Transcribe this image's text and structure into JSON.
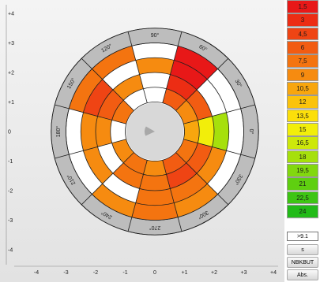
{
  "chart_data": {
    "type": "polar_heatmap",
    "angle_labels": [
      "0°",
      "30°",
      "60°",
      "90°",
      "120°",
      "150°",
      "180°",
      "210°",
      "240°",
      "270°",
      "300°",
      "330°"
    ],
    "x_ticks": [
      "-4",
      "-3",
      "-2",
      "-1",
      "0",
      "+1",
      "+2",
      "+3",
      "+4"
    ],
    "y_ticks": [
      "+4",
      "+3",
      "+2",
      "+1",
      "0",
      "-1",
      "-2",
      "-3",
      "-4"
    ],
    "xlim": [
      -4,
      4
    ],
    "ylim": [
      -4,
      4
    ],
    "sector_width_deg": 30,
    "ring_bounds": [
      0,
      1,
      1.5,
      2,
      2.5,
      3,
      3.5
    ],
    "ring_labels_scale": [
      "1,5",
      "3",
      "4,5",
      "6",
      "7,5",
      "9",
      "10,5",
      "12",
      "13,5",
      "15",
      "16,5",
      "18",
      "19,5",
      "21",
      "22,5",
      "24"
    ],
    "cells": [
      {
        "sector": 0,
        "ring": 1,
        "level": 7
      },
      {
        "sector": 0,
        "ring": 2,
        "level": 10
      },
      {
        "sector": 0,
        "ring": 3,
        "level": 12
      },
      {
        "sector": 1,
        "ring": 1,
        "level": 6
      },
      {
        "sector": 1,
        "ring": 2,
        "level": 4
      },
      {
        "sector": 2,
        "ring": 1,
        "level": 4
      },
      {
        "sector": 2,
        "ring": 2,
        "level": 2
      },
      {
        "sector": 2,
        "ring": 3,
        "level": 1
      },
      {
        "sector": 2,
        "ring": 4,
        "level": 1
      },
      {
        "sector": 3,
        "ring": 3,
        "level": 6
      },
      {
        "sector": 4,
        "ring": 2,
        "level": 6
      },
      {
        "sector": 4,
        "ring": 4,
        "level": 5
      },
      {
        "sector": 5,
        "ring": 1,
        "level": 5
      },
      {
        "sector": 5,
        "ring": 2,
        "level": 4
      },
      {
        "sector": 5,
        "ring": 3,
        "level": 3
      },
      {
        "sector": 5,
        "ring": 4,
        "level": 5
      },
      {
        "sector": 6,
        "ring": 2,
        "level": 6
      },
      {
        "sector": 6,
        "ring": 3,
        "level": 6
      },
      {
        "sector": 7,
        "ring": 1,
        "level": 6
      },
      {
        "sector": 7,
        "ring": 3,
        "level": 6
      },
      {
        "sector": 8,
        "ring": 1,
        "level": 5
      },
      {
        "sector": 8,
        "ring": 2,
        "level": 5
      },
      {
        "sector": 8,
        "ring": 4,
        "level": 6
      },
      {
        "sector": 9,
        "ring": 1,
        "level": 6
      },
      {
        "sector": 9,
        "ring": 2,
        "level": 5
      },
      {
        "sector": 9,
        "ring": 3,
        "level": 5
      },
      {
        "sector": 9,
        "ring": 4,
        "level": 5
      },
      {
        "sector": 10,
        "ring": 1,
        "level": 4
      },
      {
        "sector": 10,
        "ring": 2,
        "level": 3
      },
      {
        "sector": 10,
        "ring": 3,
        "level": 5
      },
      {
        "sector": 10,
        "ring": 4,
        "level": 6
      },
      {
        "sector": 11,
        "ring": 1,
        "level": 5
      },
      {
        "sector": 11,
        "ring": 2,
        "level": 4
      },
      {
        "sector": 11,
        "ring": 3,
        "level": 6
      }
    ],
    "grid": true
  },
  "legend": {
    "entries": [
      {
        "label": "1,5",
        "color": "#e81818"
      },
      {
        "label": "3",
        "color": "#ec2d14"
      },
      {
        "label": "4,5",
        "color": "#ef4414"
      },
      {
        "label": "6",
        "color": "#f25c12"
      },
      {
        "label": "7,5",
        "color": "#f47410"
      },
      {
        "label": "9",
        "color": "#f68b10"
      },
      {
        "label": "10,5",
        "color": "#f8a60e"
      },
      {
        "label": "12",
        "color": "#fbc30c"
      },
      {
        "label": "13,5",
        "color": "#fcdf0a"
      },
      {
        "label": "15",
        "color": "#f2ee0a"
      },
      {
        "label": "16,5",
        "color": "#cde80a"
      },
      {
        "label": "18",
        "color": "#a6e00c"
      },
      {
        "label": "19,5",
        "color": "#82d80e"
      },
      {
        "label": "21",
        "color": "#5fcf10"
      },
      {
        "label": "22,5",
        "color": "#3ec514"
      },
      {
        "label": "24",
        "color": "#22bb18"
      }
    ]
  },
  "value_box": ">9.1",
  "buttons": {
    "s": "s",
    "nbkbut": "NBKBUT",
    "abs": "Abs."
  },
  "colors": {
    "outer_ring": "#bdbdbd",
    "empty_cell": "#ffffff",
    "grid_line": "#1e1e1e",
    "center_disk": "#d8d8d8"
  }
}
